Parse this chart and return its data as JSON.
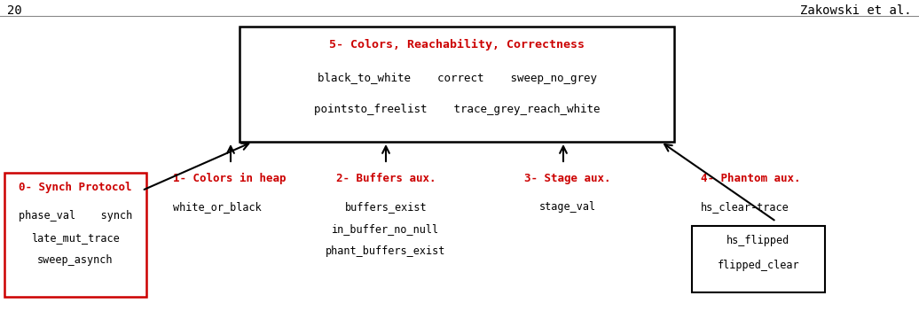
{
  "title_text": "20",
  "author_text": "Zakowski et al.",
  "bg_color": "#ffffff",
  "fig_w": 10.36,
  "fig_h": 3.51,
  "dpi": 100,
  "box5_title": "5- Colors, Reachability, Correctness",
  "box5_title_color": "#cc0000",
  "box5_line1": "black_to_white    correct    sweep_no_grey",
  "box5_line2": "pointsto_freelist    trace_grey_reach_white",
  "box5_text_color": "#000000",
  "box0_title": "0- Synch Protocol",
  "box0_title_color": "#cc0000",
  "box0_line1": "phase_val    synch",
  "box0_line2": "late_mut_trace",
  "box0_line3": "sweep_asynch",
  "box0_text_color": "#000000",
  "label1_title": "1- Colors in heap",
  "label1_title_color": "#cc0000",
  "label1_line1": "white_or_black",
  "label2_title": "2- Buffers aux.",
  "label2_title_color": "#cc0000",
  "label2_line1": "buffers_exist",
  "label2_line2": "in_buffer_no_null",
  "label2_line3": "phant_buffers_exist",
  "label3_title": "3- Stage aux.",
  "label3_title_color": "#cc0000",
  "label3_line1": "stage_val",
  "label4_title": "4- Phantom aux.",
  "label4_title_color": "#cc0000",
  "label4_line1": "hs_clear-trace",
  "box4b_line1": "hs_flipped",
  "box4b_line2": "flipped_clear",
  "text_color": "#000000",
  "font_family": "monospace",
  "arrow_color": "#000000",
  "box_edge_color": "#000000",
  "box0_edge_color": "#cc0000"
}
